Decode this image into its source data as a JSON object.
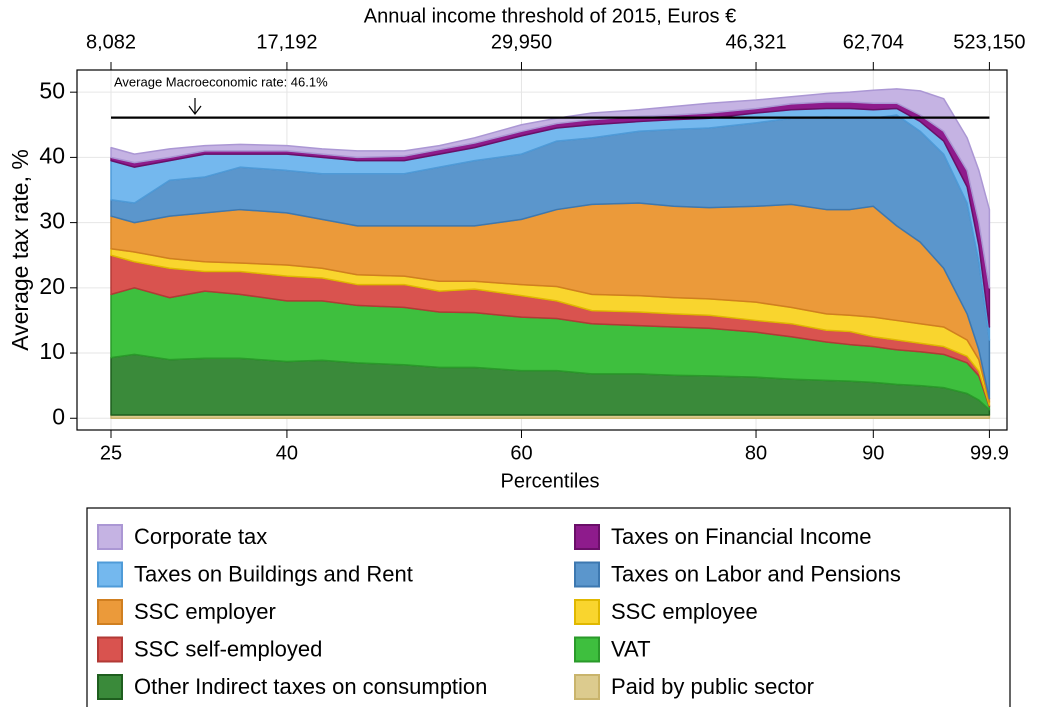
{
  "chart_data": {
    "type": "stacked_area",
    "ylabel": "Average tax rate, %",
    "xlabel": "Percentiles",
    "x2label": "Annual income threshold of 2015, Euros €",
    "x": [
      25,
      27,
      30,
      33,
      36,
      40,
      43,
      46,
      50,
      53,
      56,
      60,
      63,
      66,
      70,
      73,
      76,
      80,
      83,
      86,
      88,
      90,
      92,
      94,
      96,
      98,
      99,
      99.9
    ],
    "xlim": [
      22.1,
      101.4
    ],
    "xticks": [
      25,
      40,
      60,
      80,
      90,
      99.9
    ],
    "x2ticks": [
      {
        "value": 8082,
        "label": "8,082",
        "percentile": 25
      },
      {
        "value": 17192,
        "label": "17,192",
        "percentile": 40
      },
      {
        "value": 29950,
        "label": "29,950",
        "percentile": 60
      },
      {
        "value": 46321,
        "label": "46,321",
        "percentile": 80
      },
      {
        "value": 62704,
        "label": "62,704",
        "percentile": 90
      },
      {
        "value": 523150,
        "label": "523,150",
        "percentile": 99.9
      }
    ],
    "ylim": [
      -1.8,
      53.4
    ],
    "yticks": [
      0,
      10,
      20,
      30,
      40,
      50
    ],
    "grid": true,
    "reference_line": {
      "value": 46.1,
      "label": "Average Macroeconomic rate: 46.1%"
    },
    "series": [
      {
        "name": "Paid by public sector",
        "color": "#dccb8e",
        "edgecolor": "#c9b46c",
        "values": [
          0.5,
          0.5,
          0.5,
          0.5,
          0.5,
          0.5,
          0.5,
          0.5,
          0.5,
          0.5,
          0.5,
          0.5,
          0.5,
          0.5,
          0.5,
          0.5,
          0.5,
          0.5,
          0.5,
          0.5,
          0.5,
          0.5,
          0.5,
          0.5,
          0.5,
          0.5,
          0.5,
          0.5
        ]
      },
      {
        "name": "Other Indirect taxes on consumption",
        "color": "#3a8a3a",
        "edgecolor": "#1e5e1e",
        "values": [
          8.8,
          9.3,
          8.5,
          8.7,
          8.7,
          8.2,
          8.4,
          8,
          7.7,
          7.3,
          7.3,
          6.8,
          6.8,
          6.3,
          6.3,
          6.1,
          6,
          5.8,
          5.5,
          5.3,
          5.2,
          5,
          4.7,
          4.5,
          4.2,
          3.3,
          2.3,
          0.8
        ]
      },
      {
        "name": "VAT",
        "color": "#3ebf3e",
        "edgecolor": "#2a9a2a",
        "values": [
          9.7,
          10.2,
          9.5,
          10.3,
          9.8,
          9.3,
          9.1,
          8.8,
          8.8,
          8.5,
          8.4,
          8.2,
          8,
          7.7,
          7.4,
          7.4,
          7.3,
          6.9,
          6.5,
          5.9,
          5.6,
          5.5,
          5.3,
          5.2,
          5.1,
          4.7,
          3.7,
          0.5
        ]
      },
      {
        "name": "SSC self-employed",
        "color": "#d9534f",
        "edgecolor": "#b23a36",
        "values": [
          6,
          4,
          4.5,
          3,
          3.5,
          3.8,
          3.5,
          3.2,
          3.5,
          3.2,
          3.6,
          3.3,
          2.7,
          2,
          2.1,
          2,
          2,
          1.8,
          2,
          1.8,
          2,
          1.5,
          1.5,
          1.3,
          1.2,
          1,
          0.7,
          0.2
        ]
      },
      {
        "name": "SSC employee",
        "color": "#f9d52e",
        "edgecolor": "#e0b800",
        "values": [
          1,
          1.5,
          1.5,
          1.5,
          1.3,
          1.7,
          1.5,
          1.5,
          1.3,
          1.5,
          1.2,
          1.7,
          2.2,
          2.5,
          2.5,
          2.5,
          2.5,
          2.8,
          2.5,
          2.5,
          2.5,
          3,
          3,
          3,
          3,
          2.5,
          1.8,
          0.5
        ]
      },
      {
        "name": "SSC employer",
        "color": "#eb9a3a",
        "edgecolor": "#d07f20",
        "values": [
          5,
          4.5,
          6.5,
          7.5,
          8.2,
          8,
          7.5,
          7.5,
          7.7,
          8.5,
          8.5,
          10,
          11.8,
          13.8,
          14.2,
          14,
          14,
          14.7,
          15.8,
          16,
          16.2,
          17,
          14.5,
          12.5,
          9,
          4,
          1.5,
          0.5
        ]
      },
      {
        "name": "Taxes on Labor and Pensions",
        "color": "#5b96cc",
        "edgecolor": "#3d78b0",
        "values": [
          2.5,
          3,
          5.5,
          5.5,
          6.5,
          6.5,
          7,
          8,
          8,
          9,
          10,
          10,
          10.5,
          10.2,
          11,
          11.8,
          12.2,
          12.8,
          13.2,
          14.2,
          14,
          13.5,
          17,
          17,
          17.5,
          17,
          13.5,
          9
        ]
      },
      {
        "name": "Taxes on Buildings and Rent",
        "color": "#74b8ee",
        "edgecolor": "#4f9bd8",
        "values": [
          6,
          5.5,
          3,
          3.5,
          2,
          2.5,
          2.5,
          2,
          2,
          2,
          2,
          2.8,
          2,
          2,
          1.5,
          1.5,
          1.5,
          1.5,
          1.3,
          1.3,
          1.5,
          1.3,
          1,
          1.5,
          2,
          2.5,
          2.5,
          2
        ]
      },
      {
        "name": "Taxes on Financial Income",
        "color": "#8e1b8c",
        "edgecolor": "#6a0f68",
        "values": [
          0.5,
          0.7,
          0.5,
          0.5,
          0.5,
          0.5,
          0.5,
          0.5,
          0.7,
          0.7,
          0.7,
          0.7,
          0.7,
          0.8,
          0.8,
          0.7,
          0.8,
          0.7,
          0.9,
          1,
          1,
          1,
          0.8,
          1,
          1.5,
          2.5,
          3.5,
          6
        ]
      },
      {
        "name": "Corporate tax",
        "color": "#c5b3e3",
        "edgecolor": "#ab97d4",
        "values": [
          1.5,
          1.3,
          1.3,
          0.8,
          1,
          0.8,
          0.8,
          1,
          0.8,
          0.6,
          0.8,
          1,
          0.8,
          1,
          1,
          1.3,
          1.5,
          1.3,
          1.1,
          1.3,
          1.5,
          2,
          2.2,
          3.7,
          5,
          5,
          8,
          12
        ]
      }
    ]
  }
}
